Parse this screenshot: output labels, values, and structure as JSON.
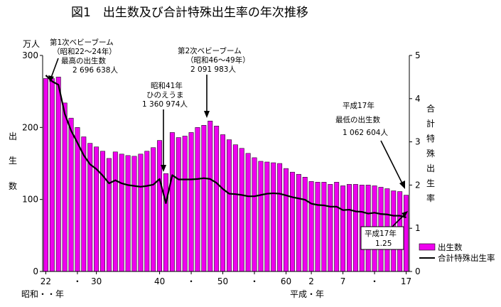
{
  "chart_data": {
    "type": "bar",
    "title": "図1　出生数及び合計特殊出生率の年次推移",
    "left_axis": {
      "unit": "万人",
      "label_chars": [
        "出",
        "生",
        "数"
      ],
      "range": [
        0,
        300
      ],
      "ticks": [
        "0",
        "100",
        "200",
        "300"
      ]
    },
    "right_axis": {
      "label_chars": [
        "合",
        "計",
        "特",
        "殊",
        "出",
        "生",
        "率"
      ],
      "range": [
        0,
        5
      ],
      "ticks": [
        "0",
        "1",
        "2",
        "3",
        "4",
        "5"
      ]
    },
    "x_axis": {
      "ticks": [
        {
          "i": 0,
          "label": "22"
        },
        {
          "i": 5,
          "label": "・"
        },
        {
          "i": 8,
          "label": "30"
        },
        {
          "i": 18,
          "label": "40"
        },
        {
          "i": 23,
          "label": "・"
        },
        {
          "i": 28,
          "label": "50"
        },
        {
          "i": 33,
          "label": "・"
        },
        {
          "i": 38,
          "label": "60"
        },
        {
          "i": 42,
          "label": "2"
        },
        {
          "i": 47,
          "label": "7"
        },
        {
          "i": 52,
          "label": "・"
        },
        {
          "i": 57,
          "label": "17"
        }
      ],
      "era_showa": "昭和・・年",
      "era_heisei": "平成・年"
    },
    "series": [
      {
        "name": "出生数",
        "axis": "left",
        "color": "#ee00ee",
        "values": [
          268,
          268,
          270,
          234,
          213,
          200,
          187,
          178,
          173,
          167,
          157,
          166,
          163,
          161,
          160,
          163,
          167,
          172,
          182,
          136,
          193,
          186,
          188,
          193,
          200,
          203,
          209,
          202,
          190,
          183,
          176,
          171,
          164,
          158,
          153,
          152,
          151,
          150,
          143,
          138,
          135,
          131,
          125,
          124,
          124,
          121,
          124,
          119,
          121,
          121,
          120,
          120,
          119,
          117,
          115,
          112,
          111,
          106
        ]
      },
      {
        "name": "合計特殊出生率",
        "axis": "right",
        "color": "#000000",
        "values": [
          4.54,
          4.4,
          4.32,
          3.65,
          3.26,
          2.98,
          2.69,
          2.48,
          2.37,
          2.22,
          2.04,
          2.11,
          2.04,
          2.0,
          1.98,
          1.96,
          1.98,
          2.01,
          2.14,
          1.58,
          2.23,
          2.13,
          2.13,
          2.13,
          2.14,
          2.16,
          2.14,
          2.05,
          1.91,
          1.8,
          1.79,
          1.77,
          1.74,
          1.74,
          1.77,
          1.8,
          1.81,
          1.8,
          1.76,
          1.72,
          1.69,
          1.66,
          1.57,
          1.54,
          1.53,
          1.5,
          1.5,
          1.42,
          1.43,
          1.39,
          1.38,
          1.34,
          1.36,
          1.33,
          1.32,
          1.29,
          1.29,
          1.25
        ]
      }
    ],
    "annotations": [
      {
        "id": "boom1",
        "lines": [
          "第1次ベビーブーム",
          "（昭和22～24年）",
          "最高の出生数",
          "2 696 638人"
        ]
      },
      {
        "id": "hinoe",
        "lines": [
          "昭和41年",
          "ひのえうま",
          "1 360 974人"
        ]
      },
      {
        "id": "boom2",
        "lines": [
          "第2次ベビーブーム",
          "（昭和46～49年）",
          "2 091 983人"
        ]
      },
      {
        "id": "lowest",
        "lines": [
          "平成17年",
          "最低の出生数",
          "1 062 604人"
        ]
      },
      {
        "id": "rate17",
        "lines": [
          "平成17年",
          "1.25"
        ]
      }
    ],
    "legend": {
      "position": "bottom-right",
      "items": [
        {
          "label": "出生数",
          "kind": "bar"
        },
        {
          "label": "合計特殊出生率",
          "kind": "line"
        }
      ]
    }
  }
}
